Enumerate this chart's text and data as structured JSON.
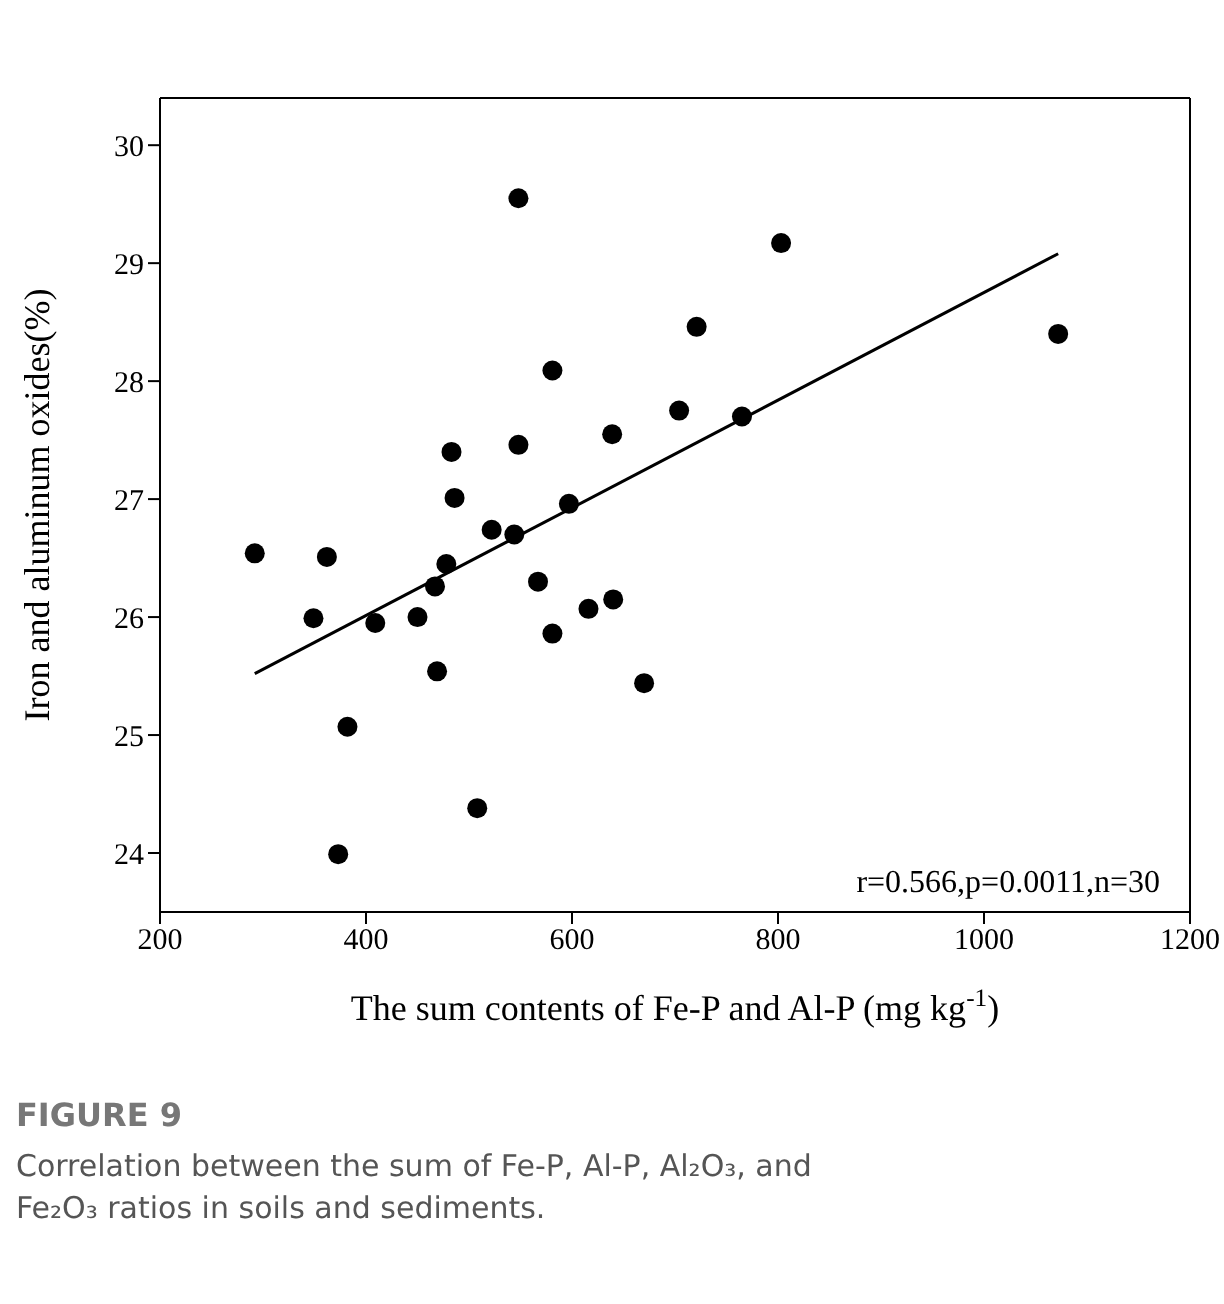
{
  "chart_data": {
    "type": "scatter",
    "xlabel": "The sum contents of Fe-P and Al-P (mg kg$^{-1}$)",
    "ylabel": "Iron and aluminum oxides(%)",
    "title": "FIGURE 9",
    "subtitle": "Correlation between the sum of Fe-P, Al-P, Al₂O₃, and Fe₂O₃ ratios in soils and sediments.",
    "annotations": [
      "r=0.566,p=0.0011,n=30"
    ],
    "xlim": [
      200,
      1200
    ],
    "xticks": [
      200,
      400,
      600,
      800,
      1000,
      1200
    ],
    "ylim": [
      23.5,
      30.4
    ],
    "yticks": [
      24,
      25,
      26,
      27,
      28,
      29,
      30
    ],
    "marker": "circle",
    "series": [
      {
        "color": "#000000",
        "x": [
          292,
          349,
          362,
          409,
          382,
          373,
          450,
          469,
          467,
          478,
          483,
          486,
          508,
          522,
          544,
          548,
          548,
          567,
          581,
          581,
          597,
          616,
          640,
          639,
          670,
          704,
          721,
          765,
          803,
          1072
        ],
        "values": [
          26.54,
          25.99,
          26.51,
          25.95,
          25.07,
          23.99,
          26.0,
          25.54,
          26.26,
          26.45,
          27.4,
          27.01,
          24.38,
          26.74,
          26.7,
          27.46,
          29.55,
          26.3,
          28.09,
          25.86,
          26.96,
          26.07,
          26.15,
          27.55,
          25.44,
          27.75,
          28.46,
          27.7,
          29.17,
          28.4
        ]
      },
      {
        "type": "line",
        "color": "#000000",
        "line_style": "solid",
        "marker": "none",
        "x": [
          292,
          1072
        ],
        "values": [
          25.52,
          29.08
        ]
      }
    ]
  }
}
